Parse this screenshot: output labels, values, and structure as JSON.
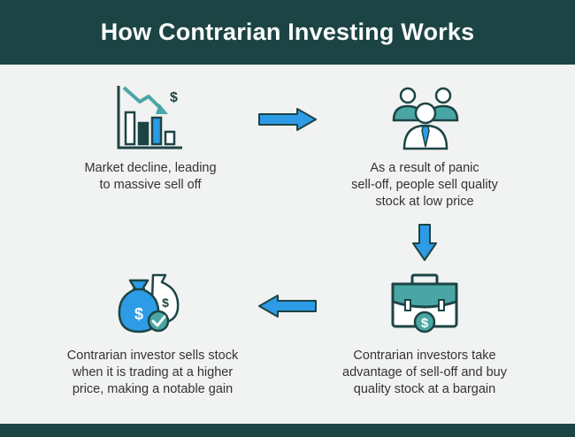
{
  "title": "How Contrarian Investing Works",
  "steps": [
    {
      "text": "Market decline, leading\nto massive sell off",
      "icon": "declining-chart-icon"
    },
    {
      "text": "As a result of panic\nsell-off, people sell quality\nstock at low price",
      "icon": "people-group-icon"
    },
    {
      "text": "Contrarian investors take\nadvantage of sell-off and buy\nquality stock at a bargain",
      "icon": "briefcase-dollar-icon"
    },
    {
      "text": "Contrarian investor sells stock\nwhen it is trading at a higher\nprice, making a notable gain",
      "icon": "money-bags-icon"
    }
  ],
  "colors": {
    "header": "#1d4444",
    "background": "#f1f2f2",
    "accent_blue": "#2d9be6",
    "accent_teal": "#4aa6a4",
    "outline": "#1d4444",
    "text": "#333333"
  }
}
